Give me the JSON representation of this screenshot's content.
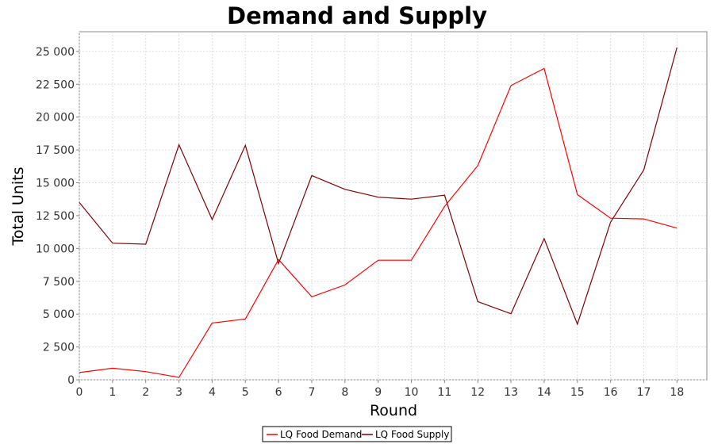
{
  "chart_data": {
    "type": "line",
    "title": "Demand and Supply",
    "xlabel": "Round",
    "ylabel": "Total Units",
    "xlim": [
      0,
      18.9
    ],
    "ylim": [
      0,
      26500
    ],
    "x_ticks": [
      0,
      1,
      2,
      3,
      4,
      5,
      6,
      7,
      8,
      9,
      10,
      11,
      12,
      13,
      14,
      15,
      16,
      17,
      18
    ],
    "x_tick_labels": [
      "0",
      "1",
      "2",
      "3",
      "4",
      "5",
      "6",
      "7",
      "8",
      "9",
      "10",
      "11",
      "12",
      "13",
      "14",
      "15",
      "16",
      "17",
      "18"
    ],
    "y_ticks": [
      0,
      2500,
      5000,
      7500,
      10000,
      12500,
      15000,
      17500,
      20000,
      22500,
      25000
    ],
    "y_tick_labels": [
      "0",
      "2 500",
      "5 000",
      "7 500",
      "10 000",
      "12 500",
      "15 000",
      "17 500",
      "20 000",
      "22 500",
      "25 000"
    ],
    "grid": true,
    "legend_position": "bottom-center",
    "x": [
      0,
      1,
      2,
      3,
      4,
      5,
      6,
      7,
      8,
      9,
      10,
      11,
      12,
      13,
      14,
      15,
      16,
      17,
      18
    ],
    "series": [
      {
        "name": "LQ Food Demand",
        "color": "#ff0000",
        "values": [
          550,
          880,
          620,
          180,
          4320,
          4630,
          9160,
          6320,
          7220,
          9100,
          9100,
          13200,
          16300,
          22400,
          23700,
          14100,
          12300,
          12250,
          11550
        ]
      },
      {
        "name": "LQ Food Supply",
        "color": "#800000",
        "values": [
          13500,
          10400,
          10320,
          17900,
          12200,
          17850,
          8850,
          15550,
          14500,
          13900,
          13750,
          14050,
          5950,
          5030,
          10750,
          4240,
          12000,
          15980,
          25300
        ]
      }
    ]
  }
}
